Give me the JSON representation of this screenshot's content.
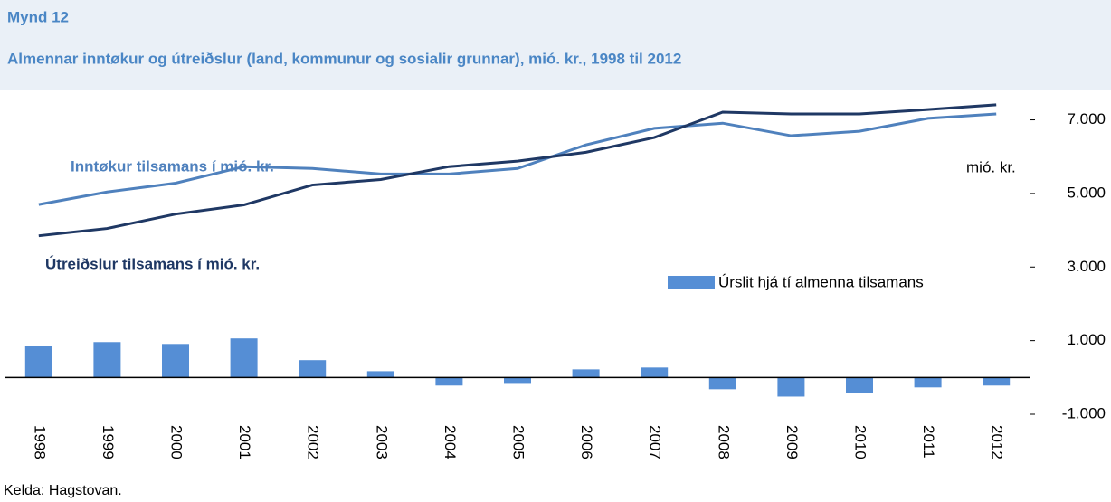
{
  "chart_data": {
    "type": "combo",
    "figure_label": "Mynd 12",
    "title": "Almennar inntøkur og útreiðslur (land, kommunur og sosialir grunnar), mió. kr., 1998 til 2012",
    "unit_label": "mió. kr.",
    "source": "Kelda: Hagstovan.",
    "categories": [
      "1998",
      "1999",
      "2000",
      "2001",
      "2002",
      "2003",
      "2004",
      "2005",
      "2006",
      "2007",
      "2008",
      "2009",
      "2010",
      "2011",
      "2012"
    ],
    "series": [
      {
        "name": "Inntøkur tilsamans í mió. kr.",
        "type": "line",
        "color": "#4f81bd",
        "values": [
          4700,
          5040,
          5280,
          5730,
          5680,
          5530,
          5530,
          5680,
          6320,
          6770,
          6910,
          6570,
          6690,
          7040,
          7160
        ]
      },
      {
        "name": "Útreiðslur tilsamans í mió. kr.",
        "type": "line",
        "color": "#1f3864",
        "values": [
          3850,
          4050,
          4440,
          4690,
          5230,
          5380,
          5730,
          5880,
          6120,
          6520,
          7210,
          7160,
          7160,
          7280,
          7410
        ]
      },
      {
        "name": "Úrslit hjá tí almenna tilsamans",
        "type": "bar",
        "color": "#558ed5",
        "values": [
          860,
          960,
          910,
          1060,
          470,
          170,
          -220,
          -150,
          220,
          270,
          -320,
          -520,
          -420,
          -270,
          -220
        ]
      }
    ],
    "ylim": [
      -1000,
      7800
    ],
    "yticks": [
      {
        "value": -1000,
        "label": "-1.000"
      },
      {
        "value": 1000,
        "label": "1.000"
      },
      {
        "value": 3000,
        "label": "3.000"
      },
      {
        "value": 5000,
        "label": "5.000"
      },
      {
        "value": 7000,
        "label": "7.000"
      }
    ]
  }
}
